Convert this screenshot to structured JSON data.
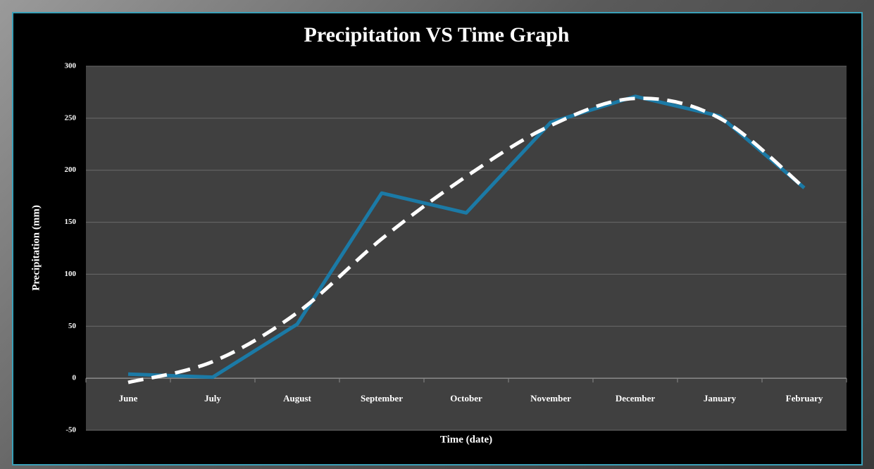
{
  "chart_data": {
    "type": "line",
    "title": "Precipitation VS Time Graph",
    "x_label": "Time (date)",
    "y_label": "Precipitation (mm)",
    "categories": [
      "June",
      "July",
      "August",
      "September",
      "October",
      "November",
      "December",
      "January",
      "February"
    ],
    "series": [
      {
        "color": "#1b7aa6",
        "line_style": "solid",
        "values": [
          4,
          1,
          52,
          178,
          159,
          246,
          271,
          252,
          183
        ]
      },
      {
        "color": "#ffffff",
        "line_style": "dashed",
        "smooth": true,
        "values": [
          -4,
          16,
          63,
          134,
          194,
          243,
          269,
          250,
          183
        ]
      }
    ],
    "ylim": [
      -50,
      300
    ],
    "yticks": [
      -50,
      0,
      50,
      100,
      150,
      200,
      250,
      300
    ],
    "grid": true
  }
}
